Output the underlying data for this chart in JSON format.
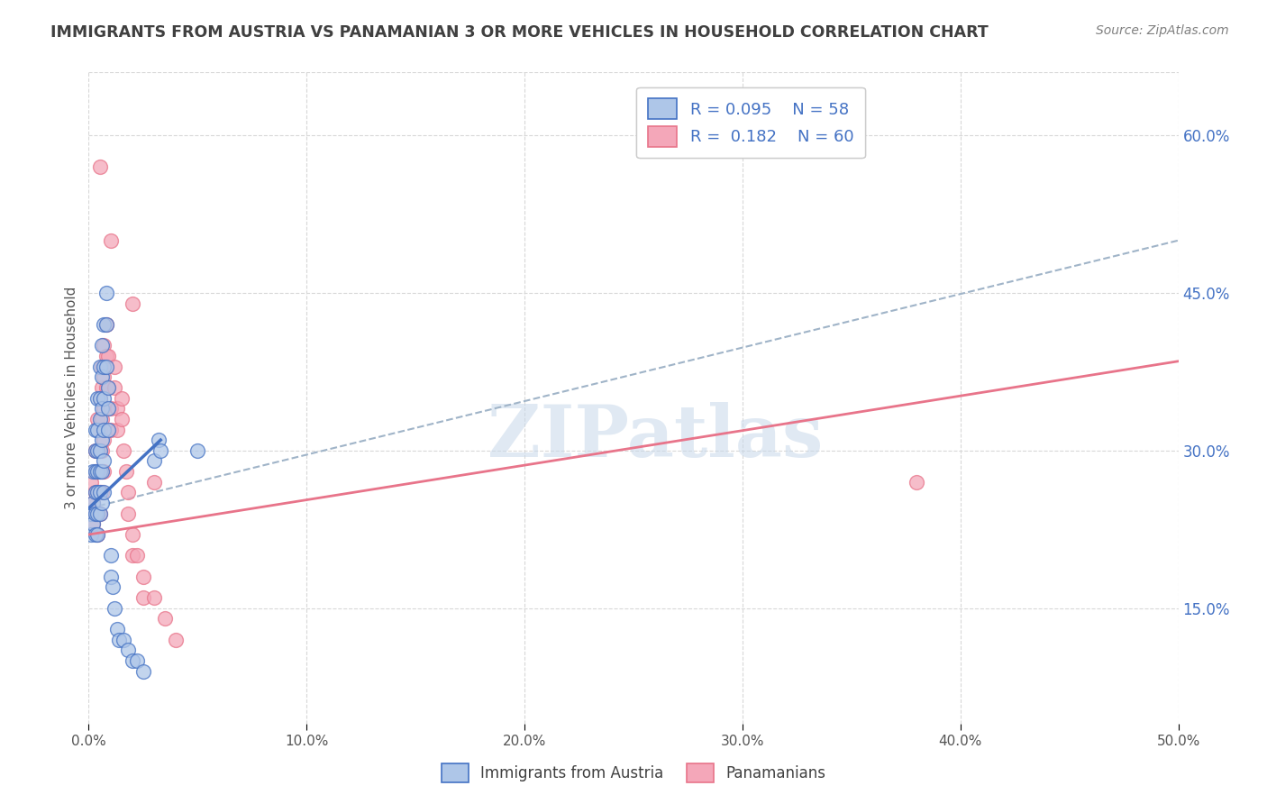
{
  "title": "IMMIGRANTS FROM AUSTRIA VS PANAMANIAN 3 OR MORE VEHICLES IN HOUSEHOLD CORRELATION CHART",
  "source": "Source: ZipAtlas.com",
  "ylabel": "3 or more Vehicles in Household",
  "xlim": [
    0.0,
    0.5
  ],
  "ylim": [
    0.04,
    0.66
  ],
  "xtick_vals": [
    0.0,
    0.1,
    0.2,
    0.3,
    0.4,
    0.5
  ],
  "ytick_vals_right": [
    0.15,
    0.3,
    0.45,
    0.6
  ],
  "ytick_labels_right": [
    "15.0%",
    "30.0%",
    "45.0%",
    "60.0%"
  ],
  "watermark_text": "ZIPatlas",
  "blue_scatter": [
    [
      0.001,
      0.24
    ],
    [
      0.001,
      0.22
    ],
    [
      0.002,
      0.28
    ],
    [
      0.002,
      0.25
    ],
    [
      0.002,
      0.23
    ],
    [
      0.003,
      0.32
    ],
    [
      0.003,
      0.3
    ],
    [
      0.003,
      0.28
    ],
    [
      0.003,
      0.26
    ],
    [
      0.003,
      0.24
    ],
    [
      0.003,
      0.22
    ],
    [
      0.004,
      0.35
    ],
    [
      0.004,
      0.32
    ],
    [
      0.004,
      0.3
    ],
    [
      0.004,
      0.28
    ],
    [
      0.004,
      0.26
    ],
    [
      0.004,
      0.24
    ],
    [
      0.004,
      0.22
    ],
    [
      0.005,
      0.38
    ],
    [
      0.005,
      0.35
    ],
    [
      0.005,
      0.33
    ],
    [
      0.005,
      0.3
    ],
    [
      0.005,
      0.28
    ],
    [
      0.005,
      0.26
    ],
    [
      0.005,
      0.24
    ],
    [
      0.006,
      0.4
    ],
    [
      0.006,
      0.37
    ],
    [
      0.006,
      0.34
    ],
    [
      0.006,
      0.31
    ],
    [
      0.006,
      0.28
    ],
    [
      0.006,
      0.25
    ],
    [
      0.007,
      0.42
    ],
    [
      0.007,
      0.38
    ],
    [
      0.007,
      0.35
    ],
    [
      0.007,
      0.32
    ],
    [
      0.007,
      0.29
    ],
    [
      0.007,
      0.26
    ],
    [
      0.008,
      0.45
    ],
    [
      0.008,
      0.42
    ],
    [
      0.008,
      0.38
    ],
    [
      0.009,
      0.36
    ],
    [
      0.009,
      0.34
    ],
    [
      0.009,
      0.32
    ],
    [
      0.01,
      0.2
    ],
    [
      0.01,
      0.18
    ],
    [
      0.011,
      0.17
    ],
    [
      0.012,
      0.15
    ],
    [
      0.013,
      0.13
    ],
    [
      0.014,
      0.12
    ],
    [
      0.016,
      0.12
    ],
    [
      0.018,
      0.11
    ],
    [
      0.02,
      0.1
    ],
    [
      0.022,
      0.1
    ],
    [
      0.025,
      0.09
    ],
    [
      0.03,
      0.29
    ],
    [
      0.032,
      0.31
    ],
    [
      0.033,
      0.3
    ],
    [
      0.05,
      0.3
    ]
  ],
  "pink_scatter": [
    [
      0.001,
      0.27
    ],
    [
      0.002,
      0.25
    ],
    [
      0.002,
      0.23
    ],
    [
      0.003,
      0.3
    ],
    [
      0.003,
      0.28
    ],
    [
      0.003,
      0.26
    ],
    [
      0.003,
      0.24
    ],
    [
      0.004,
      0.33
    ],
    [
      0.004,
      0.3
    ],
    [
      0.004,
      0.28
    ],
    [
      0.004,
      0.26
    ],
    [
      0.004,
      0.24
    ],
    [
      0.004,
      0.22
    ],
    [
      0.005,
      0.35
    ],
    [
      0.005,
      0.32
    ],
    [
      0.005,
      0.3
    ],
    [
      0.005,
      0.28
    ],
    [
      0.005,
      0.26
    ],
    [
      0.005,
      0.24
    ],
    [
      0.006,
      0.38
    ],
    [
      0.006,
      0.36
    ],
    [
      0.006,
      0.33
    ],
    [
      0.006,
      0.3
    ],
    [
      0.006,
      0.28
    ],
    [
      0.006,
      0.26
    ],
    [
      0.007,
      0.4
    ],
    [
      0.007,
      0.37
    ],
    [
      0.007,
      0.34
    ],
    [
      0.007,
      0.31
    ],
    [
      0.007,
      0.28
    ],
    [
      0.008,
      0.42
    ],
    [
      0.008,
      0.39
    ],
    [
      0.008,
      0.36
    ],
    [
      0.009,
      0.39
    ],
    [
      0.009,
      0.36
    ],
    [
      0.01,
      0.34
    ],
    [
      0.01,
      0.32
    ],
    [
      0.012,
      0.38
    ],
    [
      0.012,
      0.36
    ],
    [
      0.013,
      0.34
    ],
    [
      0.013,
      0.32
    ],
    [
      0.015,
      0.35
    ],
    [
      0.015,
      0.33
    ],
    [
      0.016,
      0.3
    ],
    [
      0.017,
      0.28
    ],
    [
      0.018,
      0.26
    ],
    [
      0.018,
      0.24
    ],
    [
      0.02,
      0.22
    ],
    [
      0.02,
      0.2
    ],
    [
      0.022,
      0.2
    ],
    [
      0.025,
      0.18
    ],
    [
      0.025,
      0.16
    ],
    [
      0.03,
      0.16
    ],
    [
      0.035,
      0.14
    ],
    [
      0.04,
      0.12
    ],
    [
      0.005,
      0.57
    ],
    [
      0.01,
      0.5
    ],
    [
      0.02,
      0.44
    ],
    [
      0.03,
      0.27
    ],
    [
      0.38,
      0.27
    ]
  ],
  "blue_line_x": [
    0.0,
    0.033
  ],
  "blue_line_y": [
    0.245,
    0.31
  ],
  "pink_line_x": [
    0.0,
    0.5
  ],
  "pink_line_y": [
    0.22,
    0.385
  ],
  "dash_line_x": [
    0.0,
    0.5
  ],
  "dash_line_y": [
    0.245,
    0.5
  ],
  "blue_color": "#aec6e8",
  "pink_color": "#f4a7b9",
  "blue_edge_color": "#4472c4",
  "pink_edge_color": "#e8748a",
  "blue_line_color": "#4472c4",
  "pink_line_color": "#e8748a",
  "dash_color": "#a0b4c8",
  "title_color": "#404040",
  "source_color": "#808080",
  "right_tick_color": "#4472c4",
  "background_color": "#ffffff",
  "grid_color": "#d8d8d8"
}
